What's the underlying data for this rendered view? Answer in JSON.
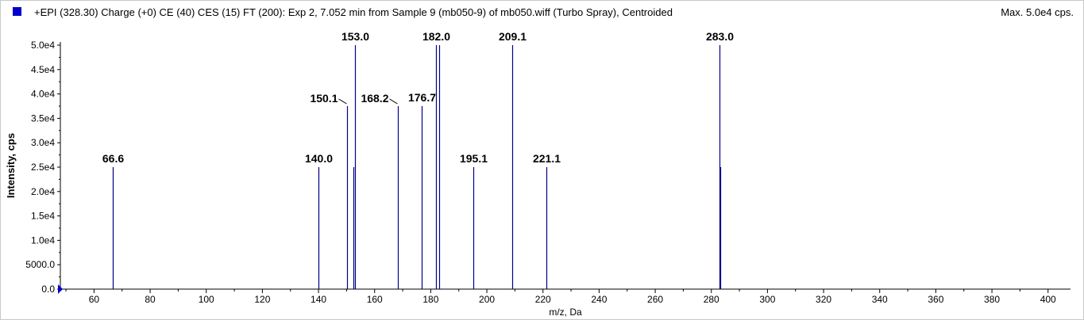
{
  "header": {
    "title": "+EPI (328.30) Charge (+0) CE (40) CES (15) FT (200): Exp 2, 7.052 min from Sample 9 (mb050-9) of mb050.wiff (Turbo Spray), Centroided",
    "max_label": "Max. 5.0e4 cps."
  },
  "colors": {
    "series": "#00008b",
    "swatch": "#0000cc",
    "axis": "#000000"
  },
  "chart_data": {
    "type": "bar",
    "title": "",
    "xlabel": "m/z, Da",
    "ylabel": "Intensity, cps",
    "xlim": [
      48,
      408
    ],
    "ylim": [
      0,
      50000
    ],
    "grid": false,
    "x_ticks": [
      60,
      80,
      100,
      120,
      140,
      160,
      180,
      200,
      220,
      240,
      260,
      280,
      300,
      320,
      340,
      360,
      380,
      400
    ],
    "x_tick_labels": [
      "60",
      "80",
      "100",
      "120",
      "140",
      "160",
      "180",
      "200",
      "220",
      "240",
      "260",
      "280",
      "300",
      "320",
      "340",
      "360",
      "380",
      "400"
    ],
    "y_ticks": [
      0,
      5000,
      10000,
      15000,
      20000,
      25000,
      30000,
      35000,
      40000,
      45000,
      50000
    ],
    "y_tick_labels": [
      "0.0",
      "5000.0",
      "1.0e4",
      "1.5e4",
      "2.0e4",
      "2.5e4",
      "3.0e4",
      "3.5e4",
      "4.0e4",
      "4.5e4",
      "5.0e4"
    ],
    "peaks": [
      {
        "x": 66.6,
        "y": 25000,
        "label": "66.6"
      },
      {
        "x": 140.0,
        "y": 25000,
        "label": "140.0"
      },
      {
        "x": 150.1,
        "y": 37500,
        "label": "150.1",
        "label_offset": "left"
      },
      {
        "x": 152.3,
        "y": 25000,
        "label": ""
      },
      {
        "x": 153.0,
        "y": 50000,
        "label": "153.0"
      },
      {
        "x": 168.2,
        "y": 37500,
        "label": "168.2",
        "label_offset": "left"
      },
      {
        "x": 176.7,
        "y": 37500,
        "label": "176.7"
      },
      {
        "x": 182.0,
        "y": 50000,
        "label": "182.0"
      },
      {
        "x": 183.0,
        "y": 50000,
        "label": ""
      },
      {
        "x": 195.1,
        "y": 25000,
        "label": "195.1"
      },
      {
        "x": 209.1,
        "y": 50000,
        "label": "209.1"
      },
      {
        "x": 221.1,
        "y": 25000,
        "label": "221.1"
      },
      {
        "x": 283.0,
        "y": 50000,
        "label": "283.0"
      },
      {
        "x": 283.3,
        "y": 25000,
        "label": ""
      }
    ]
  }
}
